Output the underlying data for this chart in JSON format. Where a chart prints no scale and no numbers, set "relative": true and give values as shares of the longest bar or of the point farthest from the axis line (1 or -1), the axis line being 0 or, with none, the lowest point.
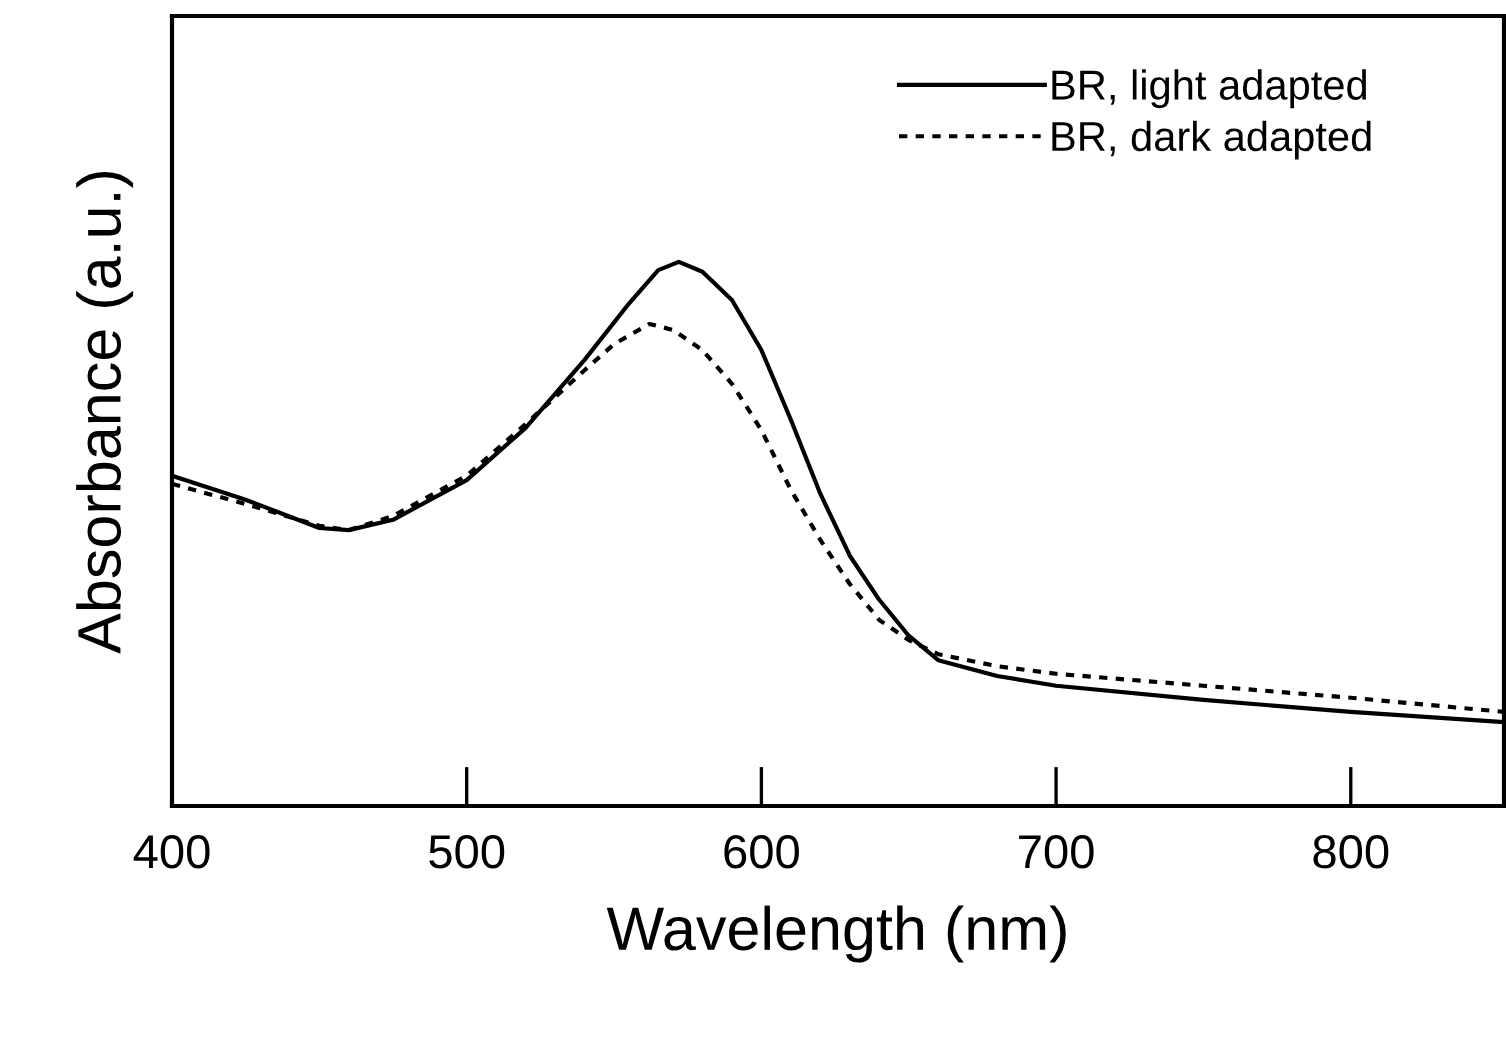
{
  "chart_data": {
    "type": "line",
    "xlabel": "Wavelength (nm)",
    "ylabel": "Absorbance (a.u.)",
    "relative": true,
    "xlim": [
      400,
      852
    ],
    "xticks": [
      400,
      500,
      600,
      700,
      800
    ],
    "grid": false,
    "legend": "top right",
    "marker": "none",
    "series": [
      {
        "name": "BR, light adapted",
        "color": "#000000",
        "line_style": "solid",
        "x": [
          400,
          425,
          450,
          460,
          475,
          500,
          520,
          540,
          555,
          565,
          572,
          580,
          590,
          600,
          610,
          620,
          630,
          640,
          650,
          660,
          680,
          700,
          750,
          800,
          852
        ],
        "values": [
          0.607,
          0.563,
          0.511,
          0.507,
          0.526,
          0.599,
          0.695,
          0.82,
          0.923,
          0.985,
          1.0,
          0.982,
          0.93,
          0.838,
          0.71,
          0.574,
          0.46,
          0.379,
          0.313,
          0.268,
          0.239,
          0.221,
          0.195,
          0.173,
          0.154
        ]
      },
      {
        "name": "BR, dark adapted",
        "color": "#000000",
        "line_style": "dotted",
        "x": [
          400,
          425,
          450,
          460,
          475,
          500,
          520,
          540,
          550,
          562,
          570,
          580,
          590,
          600,
          610,
          620,
          630,
          640,
          650,
          660,
          680,
          700,
          750,
          800,
          852
        ],
        "values": [
          0.592,
          0.555,
          0.515,
          0.507,
          0.533,
          0.607,
          0.702,
          0.801,
          0.849,
          0.886,
          0.875,
          0.838,
          0.776,
          0.691,
          0.581,
          0.489,
          0.408,
          0.342,
          0.305,
          0.279,
          0.257,
          0.243,
          0.221,
          0.199,
          0.173
        ]
      }
    ]
  }
}
